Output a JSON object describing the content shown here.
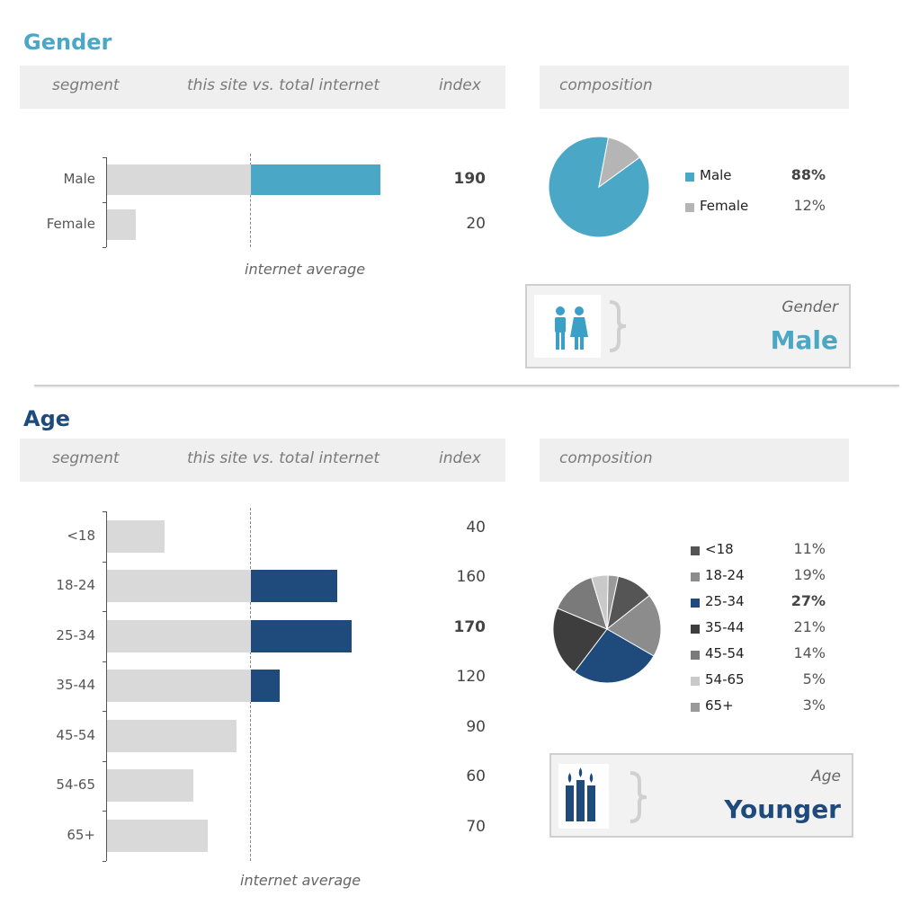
{
  "colors": {
    "gender_accent": "#4aa8c6",
    "age_accent": "#1f4a7c",
    "bar_grey": "#d9d9d9",
    "header_bg": "#efefef"
  },
  "headers": {
    "segment": "segment",
    "comparison": "this site vs. total internet",
    "index": "index",
    "composition": "composition"
  },
  "avg_label": "internet average",
  "gender": {
    "title": "Gender",
    "card": {
      "icon": "people-icon",
      "caption": "Gender",
      "value": "Male"
    }
  },
  "age": {
    "title": "Age",
    "card": {
      "icon": "candles-icon",
      "caption": "Age",
      "value": "Younger"
    }
  },
  "chart_data": [
    {
      "type": "bar",
      "categories": [
        "Male",
        "Female"
      ],
      "values": [
        190,
        20
      ],
      "reference_value": 100,
      "reference_label": "internet average",
      "value_labels": [
        "190",
        "20"
      ],
      "highlight_above_reference": true
    },
    {
      "type": "pie",
      "labels": [
        "Male",
        "Female"
      ],
      "values": [
        88,
        12
      ],
      "value_labels": [
        "88%",
        "12%"
      ],
      "colors": [
        "#4aa8c6",
        "#b5b5b5"
      ]
    },
    {
      "type": "bar",
      "categories": [
        "<18",
        "18-24",
        "25-34",
        "35-44",
        "45-54",
        "54-65",
        "65+"
      ],
      "values": [
        40,
        160,
        170,
        120,
        90,
        60,
        70
      ],
      "reference_value": 100,
      "reference_label": "internet average",
      "value_labels": [
        "40",
        "160",
        "170",
        "120",
        "90",
        "60",
        "70"
      ],
      "highlight_above_reference": true
    },
    {
      "type": "pie",
      "labels": [
        "<18",
        "18-24",
        "25-34",
        "35-44",
        "45-54",
        "54-65",
        "65+"
      ],
      "values": [
        11,
        19,
        27,
        21,
        14,
        5,
        3
      ],
      "value_labels": [
        "11%",
        "19%",
        "27%",
        "21%",
        "14%",
        "5%",
        "3%"
      ],
      "colors": [
        "#555555",
        "#8c8c8c",
        "#1f4a7c",
        "#3e3e3e",
        "#7a7a7a",
        "#c9c9c9",
        "#9a9a9a"
      ]
    }
  ]
}
